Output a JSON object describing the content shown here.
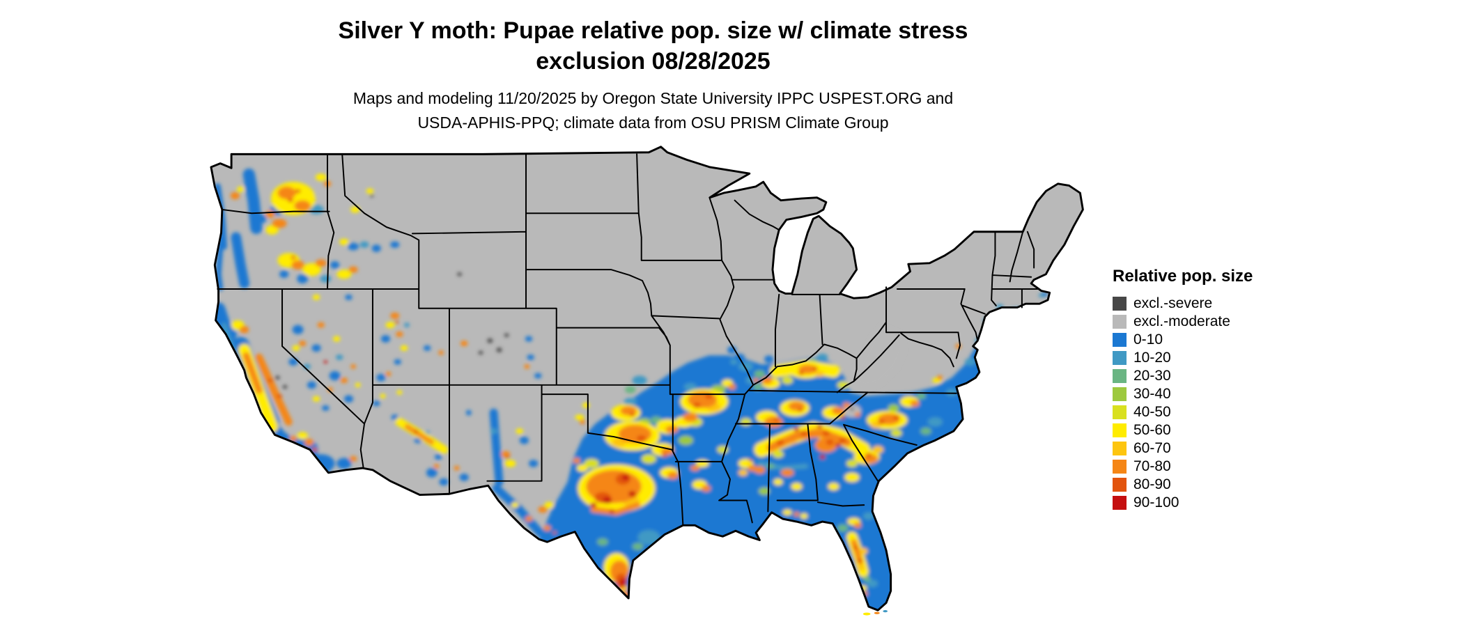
{
  "title": {
    "line1": "Silver Y moth: Pupae relative pop. size w/ climate stress",
    "line2": "exclusion 08/28/2025"
  },
  "subtitle": {
    "line1": "Maps and modeling 11/20/2025 by Oregon State University IPPC USPEST.ORG and",
    "line2": "USDA-APHIS-PPQ; climate data from OSU PRISM Climate Group"
  },
  "legend": {
    "title": "Relative pop. size",
    "items": [
      {
        "key": "excl_severe",
        "label": "excl.-severe",
        "color": "#474747"
      },
      {
        "key": "excl_moderate",
        "label": "excl.-moderate",
        "color": "#b9b9b9"
      },
      {
        "key": "v0_10",
        "label": "0-10",
        "color": "#1b78d2"
      },
      {
        "key": "v10_20",
        "label": "10-20",
        "color": "#4099c4"
      },
      {
        "key": "v20_30",
        "label": "20-30",
        "color": "#6ab583"
      },
      {
        "key": "v30_40",
        "label": "30-40",
        "color": "#9dc93e"
      },
      {
        "key": "v40_50",
        "label": "40-50",
        "color": "#d9e01f"
      },
      {
        "key": "v50_60",
        "label": "50-60",
        "color": "#ffec00"
      },
      {
        "key": "v60_70",
        "label": "60-70",
        "color": "#fdc50f"
      },
      {
        "key": "v70_80",
        "label": "70-80",
        "color": "#f58616"
      },
      {
        "key": "v80_90",
        "label": "80-90",
        "color": "#e2540e"
      },
      {
        "key": "v90_100",
        "label": "90-100",
        "color": "#c50f0f"
      }
    ]
  },
  "map": {
    "region": "Continental United States",
    "base_color": "#b9b9b9",
    "border_color": "#000000",
    "background_color": "#ffffff"
  }
}
